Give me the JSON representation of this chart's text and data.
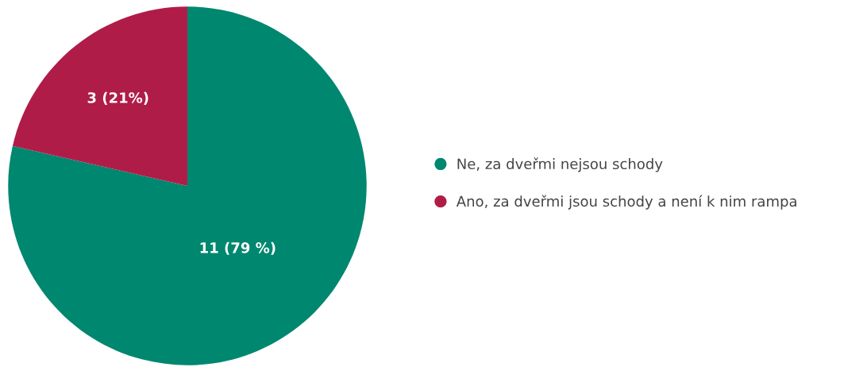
{
  "chart_data": {
    "type": "pie",
    "categories": [
      "Ne, za dveřmi nejsou schody",
      "Ano, za dveřmi jsou schody a není k nim rampa"
    ],
    "values": [
      11,
      3
    ],
    "value_labels": [
      "11 (79 %)",
      "3 (21%)"
    ],
    "colors": [
      "#00876f",
      "#b01c48"
    ],
    "legend": "right"
  }
}
